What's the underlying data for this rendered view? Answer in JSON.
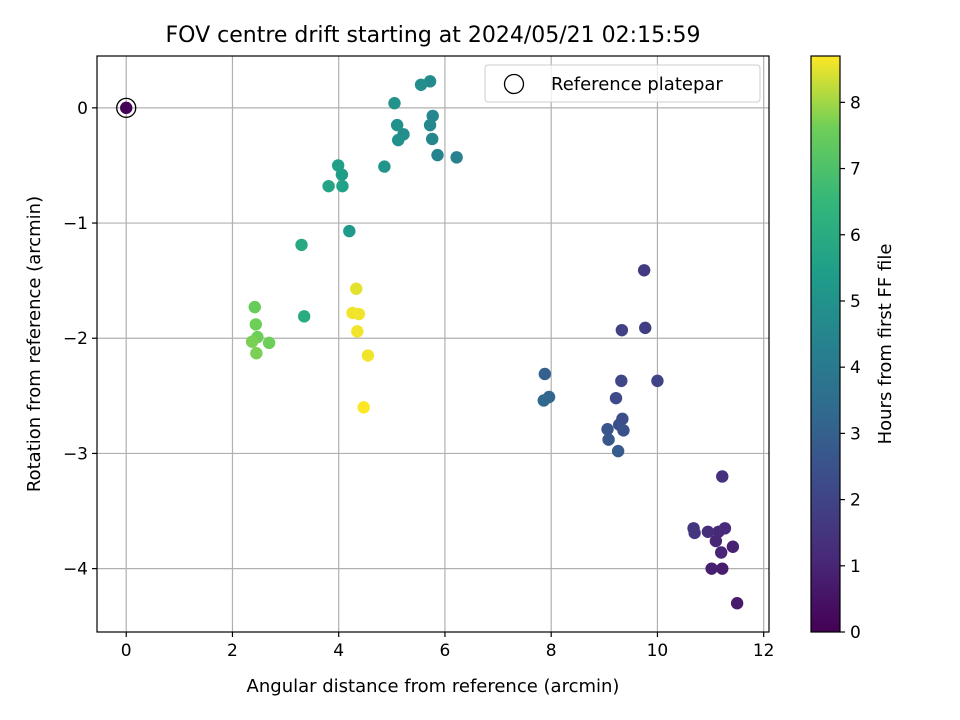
{
  "chart_data": {
    "type": "scatter",
    "title": "FOV centre drift starting at 2024/05/21 02:15:59",
    "xlabel": "Angular distance from reference (arcmin)",
    "ylabel": "Rotation from reference (arcmin)",
    "xlim": [
      -0.55,
      12.1
    ],
    "ylim": [
      -4.55,
      0.45
    ],
    "xticks": [
      0,
      2,
      4,
      6,
      8,
      10,
      12
    ],
    "yticks": [
      0,
      -1,
      -2,
      -3,
      -4
    ],
    "xtick_labels": [
      "0",
      "2",
      "4",
      "6",
      "8",
      "10",
      "12"
    ],
    "ytick_labels": [
      "0",
      "−1",
      "−2",
      "−3",
      "−4"
    ],
    "grid": true,
    "legend": {
      "position": "top-right",
      "entries": [
        "Reference platepar"
      ]
    },
    "colorbar": {
      "label": "Hours from first FF file",
      "range": [
        0,
        8.7
      ],
      "colormap": "viridis",
      "ticks": [
        0,
        1,
        2,
        3,
        4,
        5,
        6,
        7,
        8
      ],
      "tick_labels": [
        "0",
        "1",
        "2",
        "3",
        "4",
        "5",
        "6",
        "7",
        "8"
      ]
    },
    "reference_point": {
      "x": 0,
      "y": 0
    },
    "points": [
      {
        "x": 0.0,
        "y": 0.0,
        "h": 0.05
      },
      {
        "x": 11.5,
        "y": -4.3,
        "h": 0.7
      },
      {
        "x": 11.22,
        "y": -4.0,
        "h": 0.8
      },
      {
        "x": 11.02,
        "y": -4.0,
        "h": 0.85
      },
      {
        "x": 11.42,
        "y": -3.81,
        "h": 0.9
      },
      {
        "x": 11.2,
        "y": -3.86,
        "h": 1.0
      },
      {
        "x": 11.1,
        "y": -3.76,
        "h": 1.05
      },
      {
        "x": 11.15,
        "y": -3.68,
        "h": 1.1
      },
      {
        "x": 11.27,
        "y": -3.65,
        "h": 1.2
      },
      {
        "x": 10.95,
        "y": -3.68,
        "h": 1.3
      },
      {
        "x": 11.22,
        "y": -3.2,
        "h": 1.4
      },
      {
        "x": 10.7,
        "y": -3.69,
        "h": 1.5
      },
      {
        "x": 10.68,
        "y": -3.65,
        "h": 1.55
      },
      {
        "x": 9.75,
        "y": -1.41,
        "h": 1.7
      },
      {
        "x": 9.77,
        "y": -1.91,
        "h": 1.8
      },
      {
        "x": 9.33,
        "y": -1.93,
        "h": 1.9
      },
      {
        "x": 10.0,
        "y": -2.37,
        "h": 2.0
      },
      {
        "x": 9.32,
        "y": -2.37,
        "h": 2.1
      },
      {
        "x": 9.22,
        "y": -2.52,
        "h": 2.2
      },
      {
        "x": 9.34,
        "y": -2.7,
        "h": 2.3
      },
      {
        "x": 9.28,
        "y": -2.75,
        "h": 2.4
      },
      {
        "x": 9.36,
        "y": -2.8,
        "h": 2.5
      },
      {
        "x": 9.06,
        "y": -2.79,
        "h": 2.6
      },
      {
        "x": 9.08,
        "y": -2.88,
        "h": 2.7
      },
      {
        "x": 9.26,
        "y": -2.98,
        "h": 2.8
      },
      {
        "x": 7.88,
        "y": -2.31,
        "h": 3.0
      },
      {
        "x": 7.96,
        "y": -2.51,
        "h": 3.2
      },
      {
        "x": 7.86,
        "y": -2.54,
        "h": 3.3
      },
      {
        "x": 6.22,
        "y": -0.43,
        "h": 4.3
      },
      {
        "x": 5.86,
        "y": -0.41,
        "h": 4.4
      },
      {
        "x": 5.76,
        "y": -0.27,
        "h": 4.5
      },
      {
        "x": 5.77,
        "y": -0.07,
        "h": 4.5
      },
      {
        "x": 5.72,
        "y": -0.15,
        "h": 4.6
      },
      {
        "x": 5.72,
        "y": 0.23,
        "h": 4.7
      },
      {
        "x": 5.55,
        "y": 0.2,
        "h": 4.8
      },
      {
        "x": 5.22,
        "y": -0.23,
        "h": 4.8
      },
      {
        "x": 5.12,
        "y": -0.28,
        "h": 4.9
      },
      {
        "x": 5.1,
        "y": -0.15,
        "h": 4.9
      },
      {
        "x": 5.05,
        "y": 0.04,
        "h": 5.0
      },
      {
        "x": 4.86,
        "y": -0.51,
        "h": 5.1
      },
      {
        "x": 4.2,
        "y": -1.07,
        "h": 5.3
      },
      {
        "x": 4.06,
        "y": -0.58,
        "h": 5.4
      },
      {
        "x": 3.99,
        "y": -0.5,
        "h": 5.5
      },
      {
        "x": 4.07,
        "y": -0.68,
        "h": 5.6
      },
      {
        "x": 3.81,
        "y": -0.68,
        "h": 5.7
      },
      {
        "x": 3.3,
        "y": -1.19,
        "h": 5.9
      },
      {
        "x": 3.35,
        "y": -1.81,
        "h": 6.0
      },
      {
        "x": 2.42,
        "y": -1.73,
        "h": 7.5
      },
      {
        "x": 2.44,
        "y": -1.88,
        "h": 7.6
      },
      {
        "x": 2.47,
        "y": -1.99,
        "h": 7.6
      },
      {
        "x": 2.37,
        "y": -2.03,
        "h": 7.7
      },
      {
        "x": 2.69,
        "y": -2.04,
        "h": 7.6
      },
      {
        "x": 2.45,
        "y": -2.13,
        "h": 7.7
      },
      {
        "x": 4.33,
        "y": -1.57,
        "h": 8.5
      },
      {
        "x": 4.26,
        "y": -1.78,
        "h": 8.6
      },
      {
        "x": 4.38,
        "y": -1.79,
        "h": 8.6
      },
      {
        "x": 4.35,
        "y": -1.94,
        "h": 8.6
      },
      {
        "x": 4.55,
        "y": -2.15,
        "h": 8.6
      },
      {
        "x": 4.47,
        "y": -2.6,
        "h": 8.7
      }
    ]
  }
}
